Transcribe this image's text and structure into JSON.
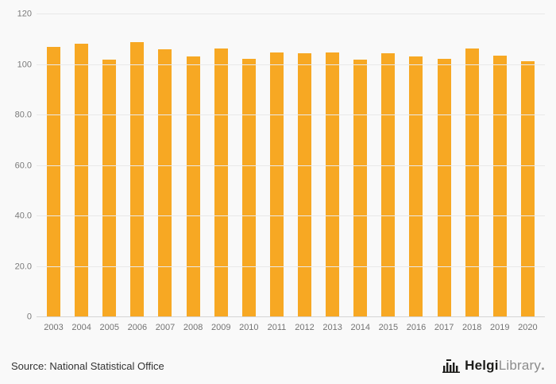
{
  "chart_data": {
    "type": "bar",
    "categories": [
      "2003",
      "2004",
      "2005",
      "2006",
      "2007",
      "2008",
      "2009",
      "2010",
      "2011",
      "2012",
      "2013",
      "2014",
      "2015",
      "2016",
      "2017",
      "2018",
      "2019",
      "2020"
    ],
    "values": [
      107.0,
      108.3,
      102.2,
      108.9,
      106.1,
      103.2,
      106.4,
      102.3,
      105.0,
      104.7,
      105.0,
      102.0,
      104.5,
      103.2,
      102.5,
      106.6,
      103.5,
      101.3
    ],
    "ylim": [
      0,
      120
    ],
    "ytick_labels": [
      "0",
      "20.0",
      "40.0",
      "60.0",
      "80.0",
      "100",
      "120"
    ],
    "grid": true,
    "legend_position": "none",
    "bar_color": "#F7A823",
    "xlabel": "",
    "ylabel": ""
  },
  "footer": {
    "source": "Source: National Statistical Office",
    "logo_primary": "Helgi",
    "logo_secondary": "Library",
    "logo_dot": "."
  },
  "colors": {
    "background": "#f9f9f9",
    "gridline": "#e9e9e9",
    "axis_line": "#d4d4d4",
    "tick_text": "#7a7a7a",
    "source_text": "#333333",
    "logo_dark": "#1d1d1b",
    "logo_gray": "#8c8c8c"
  }
}
